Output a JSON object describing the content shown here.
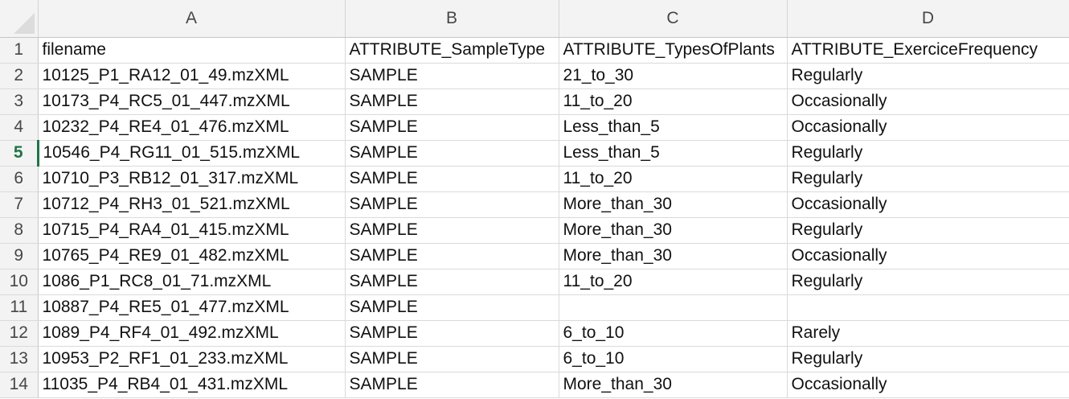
{
  "columns": [
    "A",
    "B",
    "C",
    "D"
  ],
  "active_row": "5",
  "rows": [
    {
      "num": "1",
      "cells": [
        "filename",
        "ATTRIBUTE_SampleType",
        "ATTRIBUTE_TypesOfPlants",
        "ATTRIBUTE_ExerciceFrequency"
      ]
    },
    {
      "num": "2",
      "cells": [
        "10125_P1_RA12_01_49.mzXML",
        "SAMPLE",
        "21_to_30",
        "Regularly"
      ]
    },
    {
      "num": "3",
      "cells": [
        "10173_P4_RC5_01_447.mzXML",
        "SAMPLE",
        "11_to_20",
        "Occasionally"
      ]
    },
    {
      "num": "4",
      "cells": [
        "10232_P4_RE4_01_476.mzXML",
        "SAMPLE",
        "Less_than_5",
        "Occasionally"
      ]
    },
    {
      "num": "5",
      "cells": [
        "10546_P4_RG11_01_515.mzXML",
        "SAMPLE",
        "Less_than_5",
        "Regularly"
      ]
    },
    {
      "num": "6",
      "cells": [
        "10710_P3_RB12_01_317.mzXML",
        "SAMPLE",
        "11_to_20",
        "Regularly"
      ]
    },
    {
      "num": "7",
      "cells": [
        "10712_P4_RH3_01_521.mzXML",
        "SAMPLE",
        "More_than_30",
        "Occasionally"
      ]
    },
    {
      "num": "8",
      "cells": [
        "10715_P4_RA4_01_415.mzXML",
        "SAMPLE",
        "More_than_30",
        "Regularly"
      ]
    },
    {
      "num": "9",
      "cells": [
        "10765_P4_RE9_01_482.mzXML",
        "SAMPLE",
        "More_than_30",
        "Occasionally"
      ]
    },
    {
      "num": "10",
      "cells": [
        "1086_P1_RC8_01_71.mzXML",
        "SAMPLE",
        "11_to_20",
        "Regularly"
      ]
    },
    {
      "num": "11",
      "cells": [
        "10887_P4_RE5_01_477.mzXML",
        "SAMPLE",
        "",
        ""
      ]
    },
    {
      "num": "12",
      "cells": [
        "1089_P4_RF4_01_492.mzXML",
        "SAMPLE",
        "6_to_10",
        "Rarely"
      ]
    },
    {
      "num": "13",
      "cells": [
        "10953_P2_RF1_01_233.mzXML",
        "SAMPLE",
        "6_to_10",
        "Regularly"
      ]
    },
    {
      "num": "14",
      "cells": [
        "11035_P4_RB4_01_431.mzXML",
        "SAMPLE",
        "More_than_30",
        "Occasionally"
      ]
    }
  ]
}
